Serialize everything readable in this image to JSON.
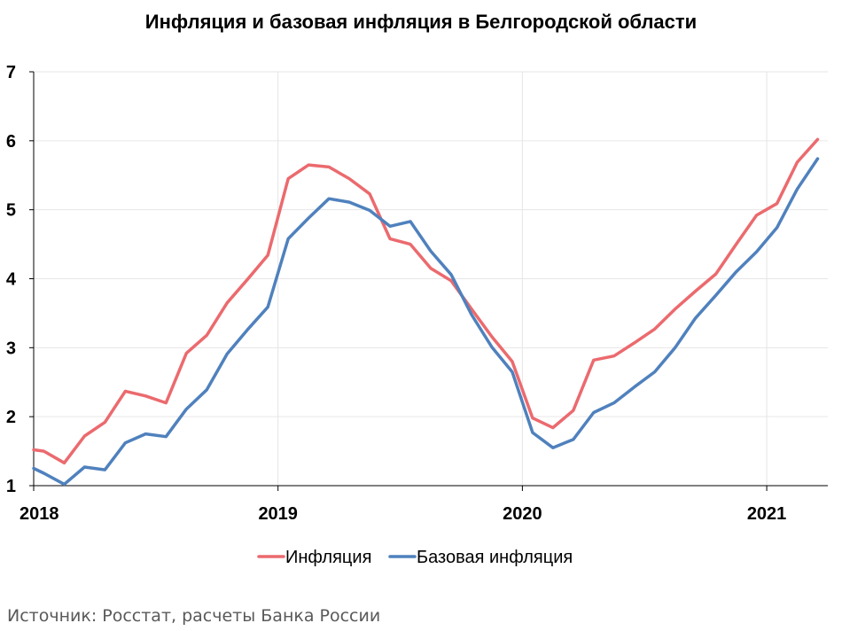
{
  "chart_data": {
    "type": "line",
    "title": "Инфляция и базовая инфляция в Белгородской области",
    "xlabel": "",
    "ylabel": "",
    "xlim": [
      2018,
      2021.25
    ],
    "ylim": [
      1,
      7
    ],
    "y_ticks": [
      "1",
      "2",
      "3",
      "4",
      "5",
      "6",
      "7"
    ],
    "x_ticks": [
      {
        "label": "2018",
        "value": 2018
      },
      {
        "label": "2019",
        "value": 2019
      },
      {
        "label": "2020",
        "value": 2020
      },
      {
        "label": "2021",
        "value": 2021
      }
    ],
    "grid": true,
    "legend_position": "bottom-center",
    "x": [
      2018.0,
      2018.0417,
      2018.125,
      2018.2083,
      2018.2917,
      2018.375,
      2018.4583,
      2018.5417,
      2018.625,
      2018.7083,
      2018.7917,
      2018.875,
      2018.9583,
      2019.0417,
      2019.125,
      2019.2083,
      2019.2917,
      2019.375,
      2019.4583,
      2019.5417,
      2019.625,
      2019.7083,
      2019.7917,
      2019.875,
      2019.9583,
      2020.0417,
      2020.125,
      2020.2083,
      2020.2917,
      2020.375,
      2020.4583,
      2020.5417,
      2020.625,
      2020.7083,
      2020.7917,
      2020.875,
      2020.9583,
      2021.0417,
      2021.125,
      2021.2083
    ],
    "series": [
      {
        "name": "Инфляция",
        "color": "#eb6a6e",
        "values": [
          1.52,
          1.5,
          1.33,
          1.72,
          1.92,
          2.37,
          2.3,
          2.2,
          2.92,
          3.18,
          3.65,
          3.99,
          4.34,
          5.45,
          5.65,
          5.62,
          5.45,
          5.23,
          4.58,
          4.5,
          4.15,
          3.97,
          3.56,
          3.16,
          2.8,
          1.98,
          1.84,
          2.09,
          2.82,
          2.88,
          3.07,
          3.27,
          3.56,
          3.82,
          4.07,
          4.5,
          4.92,
          5.09,
          5.69,
          6.02
        ]
      },
      {
        "name": "Базовая инфляция",
        "color": "#4f81bd",
        "values": [
          1.25,
          1.18,
          1.02,
          1.27,
          1.23,
          1.62,
          1.75,
          1.71,
          2.11,
          2.39,
          2.91,
          3.26,
          3.59,
          4.58,
          4.88,
          5.16,
          5.11,
          4.99,
          4.76,
          4.83,
          4.4,
          4.06,
          3.48,
          3.01,
          2.65,
          1.77,
          1.55,
          1.67,
          2.06,
          2.2,
          2.43,
          2.65,
          3.0,
          3.43,
          3.76,
          4.1,
          4.39,
          4.74,
          5.3,
          5.74
        ]
      }
    ]
  },
  "source_text": "Источник: Росстат, расчеты Банка России"
}
